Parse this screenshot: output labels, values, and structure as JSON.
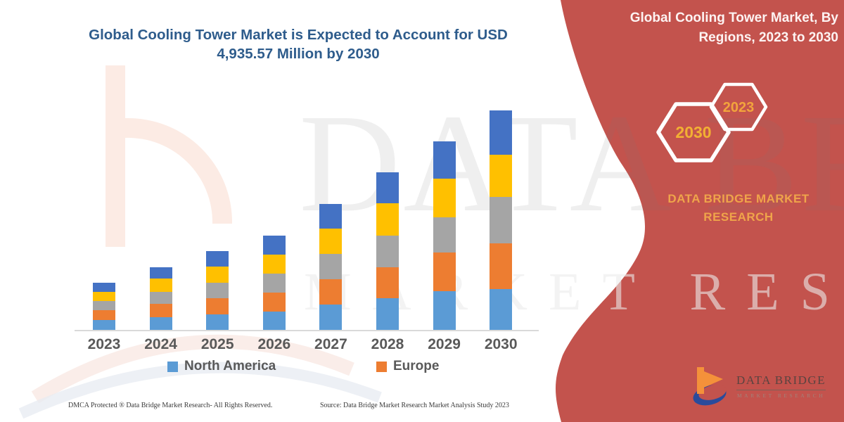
{
  "title": "Global Cooling Tower Market is Expected to Account for USD 4,935.57 Million by 2030",
  "side_panel": {
    "heading": "Global Cooling Tower Market, By Regions, 2023 to 2030",
    "hexagon_large_label": "2030",
    "hexagon_small_label": "2023",
    "brand_line1": "DATA BRIDGE MARKET",
    "brand_line2": "RESEARCH",
    "bg_color": "#c3534d",
    "gold_color": "#f2a93c"
  },
  "legend": [
    {
      "label": "North America",
      "color": "#5b9bd5"
    },
    {
      "label": "Europe",
      "color": "#ed7d31"
    }
  ],
  "footer": {
    "dmca": "DMCA Protected ® Data Bridge Market Research-  All Rights Reserved.",
    "source": "Source: Data Bridge Market Research  Market Analysis Study 2023"
  },
  "logo": {
    "title": "DATA BRIDGE",
    "subtitle": "MARKET RESEARCH",
    "icon": "data-bridge-b-and-swoosh-icon"
  },
  "watermark": {
    "line1": "DATA BRIDGE",
    "line2": "MARKET RESEARCH"
  },
  "chart_data": {
    "type": "bar",
    "stacked": true,
    "title": "Global Cooling Tower Market is Expected to Account for USD 4,935.57 Million by 2030",
    "categories": [
      "2023",
      "2024",
      "2025",
      "2026",
      "2027",
      "2028",
      "2029",
      "2030"
    ],
    "series": [
      {
        "name": "North America",
        "color": "#5b9bd5",
        "in_legend": true,
        "values": [
          14,
          18,
          22,
          26,
          36,
          45,
          55,
          58
        ]
      },
      {
        "name": "Europe",
        "color": "#ed7d31",
        "in_legend": true,
        "values": [
          14,
          19,
          23,
          27,
          36,
          44,
          55,
          65
        ]
      },
      {
        "name": "(unlabeled gray series)",
        "color": "#a5a5a5",
        "in_legend": false,
        "values": [
          13,
          17,
          22,
          27,
          36,
          45,
          50,
          66
        ]
      },
      {
        "name": "(unlabeled yellow series)",
        "color": "#ffc000",
        "in_legend": false,
        "values": [
          13,
          19,
          23,
          27,
          36,
          46,
          55,
          60
        ]
      },
      {
        "name": "(unlabeled dark-blue series)",
        "color": "#4472c4",
        "in_legend": false,
        "values": [
          13,
          16,
          22,
          27,
          35,
          44,
          53,
          63
        ]
      }
    ],
    "series_order": "bottom-to-top",
    "totals_relative": [
      67,
      89,
      112,
      134,
      179,
      224,
      268,
      312
    ],
    "value_note": "No y-axis is shown; values are relative stacked-segment heights (screen px). Title callout states market reaches USD 4,935.57 Million by 2030.",
    "xlabel": "",
    "ylabel": "",
    "grid": false,
    "legend_position": "bottom"
  }
}
